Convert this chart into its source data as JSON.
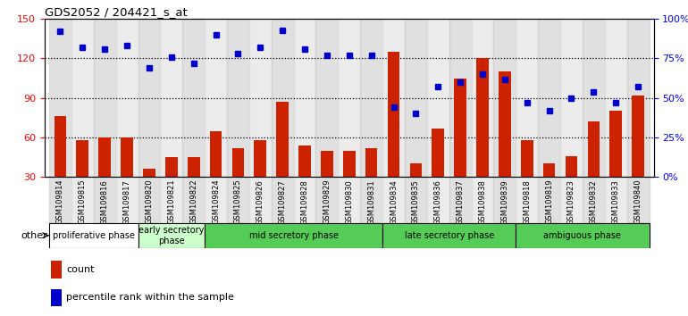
{
  "title": "GDS2052 / 204421_s_at",
  "samples": [
    "GSM109814",
    "GSM109815",
    "GSM109816",
    "GSM109817",
    "GSM109820",
    "GSM109821",
    "GSM109822",
    "GSM109824",
    "GSM109825",
    "GSM109826",
    "GSM109827",
    "GSM109828",
    "GSM109829",
    "GSM109830",
    "GSM109831",
    "GSM109834",
    "GSM109835",
    "GSM109836",
    "GSM109837",
    "GSM109838",
    "GSM109839",
    "GSM109818",
    "GSM109819",
    "GSM109823",
    "GSM109832",
    "GSM109833",
    "GSM109840"
  ],
  "counts": [
    76,
    58,
    60,
    60,
    36,
    45,
    45,
    65,
    52,
    58,
    87,
    54,
    50,
    50,
    52,
    125,
    40,
    67,
    105,
    120,
    110,
    58,
    40,
    46,
    72,
    80,
    92
  ],
  "percentiles": [
    92,
    82,
    81,
    83,
    69,
    76,
    72,
    90,
    78,
    82,
    93,
    81,
    77,
    77,
    77,
    44,
    40,
    57,
    60,
    65,
    62,
    47,
    42,
    50,
    54,
    47,
    57
  ],
  "phases_info": [
    {
      "label": "proliferative phase",
      "start": 0,
      "end": 4,
      "color": "#ffffff"
    },
    {
      "label": "early secretory\nphase",
      "start": 4,
      "end": 7,
      "color": "#ccffcc"
    },
    {
      "label": "mid secretory phase",
      "start": 7,
      "end": 15,
      "color": "#55cc55"
    },
    {
      "label": "late secretory phase",
      "start": 15,
      "end": 21,
      "color": "#55cc55"
    },
    {
      "label": "ambiguous phase",
      "start": 21,
      "end": 27,
      "color": "#55cc55"
    }
  ],
  "bar_color": "#cc2200",
  "dot_color": "#0000cc",
  "left_ylim": [
    30,
    150
  ],
  "left_yticks": [
    30,
    60,
    90,
    120,
    150
  ],
  "right_ylim": [
    0,
    100
  ],
  "right_yticks": [
    0,
    25,
    50,
    75,
    100
  ]
}
